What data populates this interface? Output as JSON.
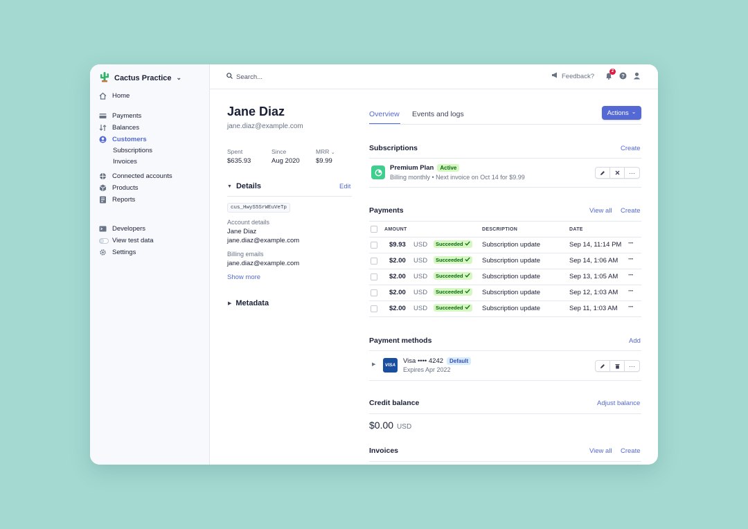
{
  "sidebar": {
    "brand": "Cactus Practice",
    "home": "Home",
    "payments": "Payments",
    "balances": "Balances",
    "customers": "Customers",
    "subscriptions": "Subscriptions",
    "invoices": "Invoices",
    "connected_accounts": "Connected accounts",
    "products": "Products",
    "reports": "Reports",
    "developers": "Developers",
    "view_test_data": "View test data",
    "settings": "Settings"
  },
  "topbar": {
    "search_placeholder": "Search...",
    "feedback": "Feedback?",
    "notification_count": "2"
  },
  "customer": {
    "name": "Jane Diaz",
    "email": "jane.diaz@example.com",
    "stats": [
      {
        "label": "Spent",
        "value": "$635.93"
      },
      {
        "label": "Since",
        "value": "Aug 2020"
      },
      {
        "label": "MRR",
        "value": "$9.99"
      }
    ],
    "details_title": "Details",
    "edit": "Edit",
    "customer_id": "cus_HwyS5SrWEuVeTp",
    "account_details_label": "Account details",
    "account_name": "Jane Diaz",
    "account_email": "jane.diaz@example.com",
    "billing_emails_label": "Billing emails",
    "billing_email": "jane.diaz@example.com",
    "show_more": "Show more",
    "metadata_title": "Metadata"
  },
  "tabs": {
    "overview": "Overview",
    "events": "Events and logs",
    "actions": "Actions"
  },
  "subscriptions": {
    "title": "Subscriptions",
    "create": "Create",
    "plan_name": "Premium Plan",
    "status": "Active",
    "detail": "Billing monthly • Next invoice on Oct 14 for $9.99"
  },
  "payments": {
    "title": "Payments",
    "view_all": "View all",
    "create": "Create",
    "columns": {
      "amount": "AMOUNT",
      "description": "DESCRIPTION",
      "date": "DATE"
    },
    "rows": [
      {
        "amount": "$9.93",
        "currency": "USD",
        "status": "Succeeded",
        "description": "Subscription update",
        "date": "Sep 14, 11:14 PM"
      },
      {
        "amount": "$2.00",
        "currency": "USD",
        "status": "Succeeded",
        "description": "Subscription update",
        "date": "Sep 14, 1:06 AM"
      },
      {
        "amount": "$2.00",
        "currency": "USD",
        "status": "Succeeded",
        "description": "Subscription update",
        "date": "Sep 13, 1:05 AM"
      },
      {
        "amount": "$2.00",
        "currency": "USD",
        "status": "Succeeded",
        "description": "Subscription update",
        "date": "Sep 12, 1:03 AM"
      },
      {
        "amount": "$2.00",
        "currency": "USD",
        "status": "Succeeded",
        "description": "Subscription update",
        "date": "Sep 11, 1:03 AM"
      }
    ]
  },
  "payment_methods": {
    "title": "Payment methods",
    "add": "Add",
    "brand_logo": "VISA",
    "card": "Visa •••• 4242",
    "default": "Default",
    "expires": "Expires Apr 2022"
  },
  "credit_balance": {
    "title": "Credit balance",
    "adjust": "Adjust balance",
    "amount": "$0.00",
    "currency": "USD"
  },
  "invoices": {
    "title": "Invoices",
    "view_all": "View all",
    "create": "Create"
  },
  "colors": {
    "accent": "#5469d4",
    "background": "#a3d9d1",
    "success_bg": "#d7f7c2",
    "success_fg": "#05690d"
  }
}
